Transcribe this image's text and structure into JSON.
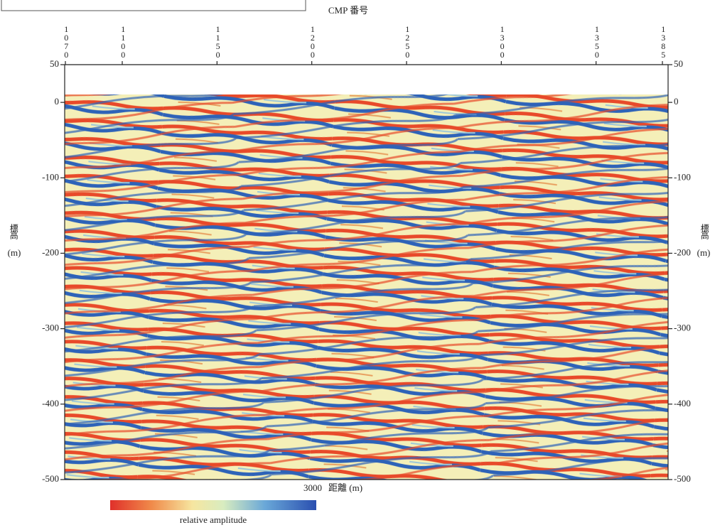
{
  "chart_data": {
    "type": "seismic",
    "x_label_top": "CMP 番号",
    "xlim_top": [
      1070,
      1385
    ],
    "xticks_top": [
      1070,
      1100,
      1150,
      1200,
      1250,
      1300,
      1350,
      1385
    ],
    "y_label": "標高",
    "y_label_unit": "(m)",
    "ylim": [
      -500,
      50
    ],
    "yticks": [
      50,
      0,
      -100,
      -200,
      -300,
      -400,
      -500
    ],
    "x_label_bottom": "距離 (m)",
    "x_tick_bottom": 3000,
    "colorbar_label": "relative amplitude"
  }
}
